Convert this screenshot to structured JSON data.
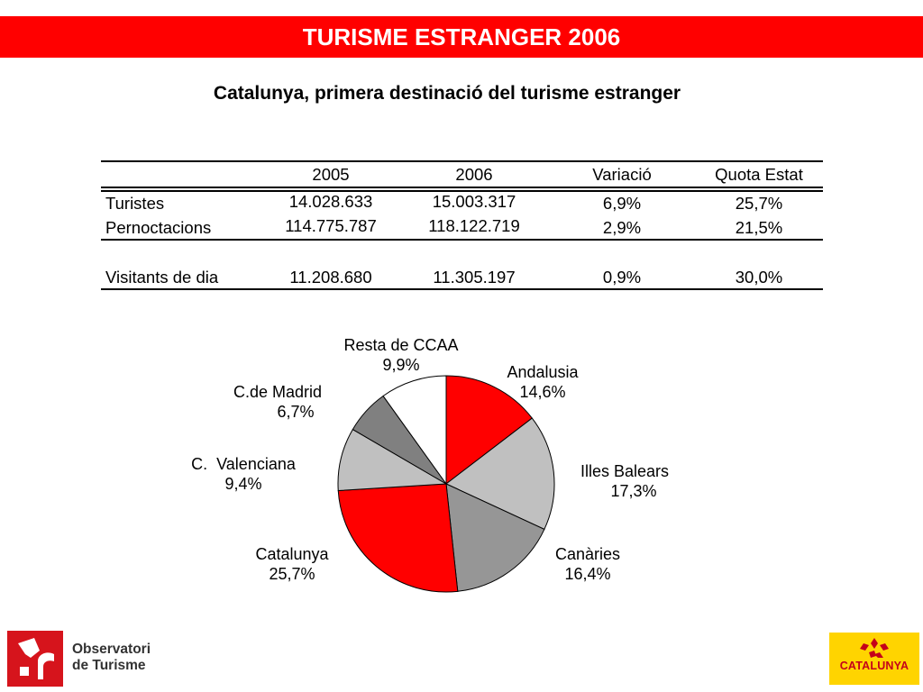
{
  "header": {
    "title": "TURISME ESTRANGER 2006"
  },
  "subtitle": "Catalunya, primera destinació del turisme estranger",
  "table": {
    "columns": [
      "",
      "2005",
      "2006",
      "Variació",
      "Quota Estat"
    ],
    "rows": [
      {
        "label": "Turistes",
        "v2005": "14.028.633",
        "v2006": "15.003.317",
        "variacio": "6,9%",
        "quota": "25,7%"
      },
      {
        "label": "Pernoctacions",
        "v2005": "114.775.787",
        "v2006": "118.122.719",
        "variacio": "2,9%",
        "quota": "21,5%"
      },
      {
        "label": "Visitants de dia",
        "v2005": "11.208.680",
        "v2006": "11.305.197",
        "variacio": "0,9%",
        "quota": "30,0%"
      }
    ]
  },
  "chart_data": {
    "type": "pie",
    "title": "",
    "slices": [
      {
        "name": "Andalusia",
        "label": "14,6%",
        "value": 14.6,
        "color": "#ff0000"
      },
      {
        "name": "Illes Balears",
        "label": "17,3%",
        "value": 17.3,
        "color": "#c0c0c0"
      },
      {
        "name": "Canàries",
        "label": "16,4%",
        "value": 16.4,
        "color": "#969696"
      },
      {
        "name": "Catalunya",
        "label": "25,7%",
        "value": 25.7,
        "color": "#ff0000"
      },
      {
        "name": "C.  Valenciana",
        "label": "9,4%",
        "value": 9.4,
        "color": "#c0c0c0"
      },
      {
        "name": "C.de Madrid",
        "label": "6,7%",
        "value": 6.7,
        "color": "#808080"
      },
      {
        "name": "Resta de CCAA",
        "label": "9,9%",
        "value": 9.9,
        "color": "#ffffff"
      }
    ],
    "start": "12 o'clock",
    "direction": "clockwise"
  },
  "logos": {
    "observatori_line1": "Observatori",
    "observatori_line2": "de Turisme",
    "catalunya": "CATALUNYA"
  },
  "colors": {
    "accent": "#ff0000",
    "logo_yellow": "#ffd400"
  }
}
